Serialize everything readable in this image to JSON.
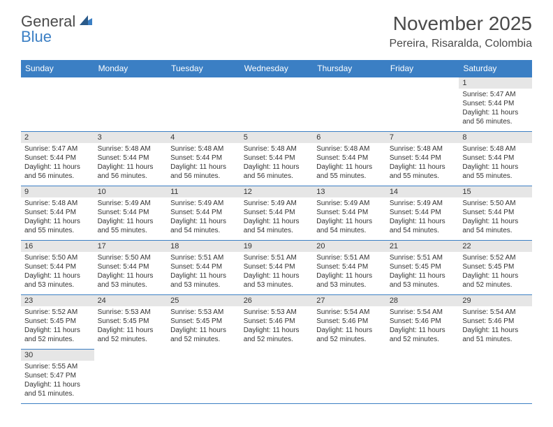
{
  "logo": {
    "text_gray": "General",
    "text_blue": "Blue"
  },
  "title": "November 2025",
  "location": "Pereira, Risaralda, Colombia",
  "colors": {
    "header_bg": "#3b7fc4",
    "header_text": "#ffffff",
    "daynum_bg": "#e6e6e6",
    "border": "#3b7fc4",
    "body_text": "#333333",
    "title_text": "#4a4a4a"
  },
  "weekdays": [
    "Sunday",
    "Monday",
    "Tuesday",
    "Wednesday",
    "Thursday",
    "Friday",
    "Saturday"
  ],
  "weeks": [
    [
      null,
      null,
      null,
      null,
      null,
      null,
      {
        "n": "1",
        "sr": "5:47 AM",
        "ss": "5:44 PM",
        "dh": "11",
        "dm": "56"
      }
    ],
    [
      {
        "n": "2",
        "sr": "5:47 AM",
        "ss": "5:44 PM",
        "dh": "11",
        "dm": "56"
      },
      {
        "n": "3",
        "sr": "5:48 AM",
        "ss": "5:44 PM",
        "dh": "11",
        "dm": "56"
      },
      {
        "n": "4",
        "sr": "5:48 AM",
        "ss": "5:44 PM",
        "dh": "11",
        "dm": "56"
      },
      {
        "n": "5",
        "sr": "5:48 AM",
        "ss": "5:44 PM",
        "dh": "11",
        "dm": "56"
      },
      {
        "n": "6",
        "sr": "5:48 AM",
        "ss": "5:44 PM",
        "dh": "11",
        "dm": "55"
      },
      {
        "n": "7",
        "sr": "5:48 AM",
        "ss": "5:44 PM",
        "dh": "11",
        "dm": "55"
      },
      {
        "n": "8",
        "sr": "5:48 AM",
        "ss": "5:44 PM",
        "dh": "11",
        "dm": "55"
      }
    ],
    [
      {
        "n": "9",
        "sr": "5:48 AM",
        "ss": "5:44 PM",
        "dh": "11",
        "dm": "55"
      },
      {
        "n": "10",
        "sr": "5:49 AM",
        "ss": "5:44 PM",
        "dh": "11",
        "dm": "55"
      },
      {
        "n": "11",
        "sr": "5:49 AM",
        "ss": "5:44 PM",
        "dh": "11",
        "dm": "54"
      },
      {
        "n": "12",
        "sr": "5:49 AM",
        "ss": "5:44 PM",
        "dh": "11",
        "dm": "54"
      },
      {
        "n": "13",
        "sr": "5:49 AM",
        "ss": "5:44 PM",
        "dh": "11",
        "dm": "54"
      },
      {
        "n": "14",
        "sr": "5:49 AM",
        "ss": "5:44 PM",
        "dh": "11",
        "dm": "54"
      },
      {
        "n": "15",
        "sr": "5:50 AM",
        "ss": "5:44 PM",
        "dh": "11",
        "dm": "54"
      }
    ],
    [
      {
        "n": "16",
        "sr": "5:50 AM",
        "ss": "5:44 PM",
        "dh": "11",
        "dm": "53"
      },
      {
        "n": "17",
        "sr": "5:50 AM",
        "ss": "5:44 PM",
        "dh": "11",
        "dm": "53"
      },
      {
        "n": "18",
        "sr": "5:51 AM",
        "ss": "5:44 PM",
        "dh": "11",
        "dm": "53"
      },
      {
        "n": "19",
        "sr": "5:51 AM",
        "ss": "5:44 PM",
        "dh": "11",
        "dm": "53"
      },
      {
        "n": "20",
        "sr": "5:51 AM",
        "ss": "5:44 PM",
        "dh": "11",
        "dm": "53"
      },
      {
        "n": "21",
        "sr": "5:51 AM",
        "ss": "5:45 PM",
        "dh": "11",
        "dm": "53"
      },
      {
        "n": "22",
        "sr": "5:52 AM",
        "ss": "5:45 PM",
        "dh": "11",
        "dm": "52"
      }
    ],
    [
      {
        "n": "23",
        "sr": "5:52 AM",
        "ss": "5:45 PM",
        "dh": "11",
        "dm": "52"
      },
      {
        "n": "24",
        "sr": "5:53 AM",
        "ss": "5:45 PM",
        "dh": "11",
        "dm": "52"
      },
      {
        "n": "25",
        "sr": "5:53 AM",
        "ss": "5:45 PM",
        "dh": "11",
        "dm": "52"
      },
      {
        "n": "26",
        "sr": "5:53 AM",
        "ss": "5:46 PM",
        "dh": "11",
        "dm": "52"
      },
      {
        "n": "27",
        "sr": "5:54 AM",
        "ss": "5:46 PM",
        "dh": "11",
        "dm": "52"
      },
      {
        "n": "28",
        "sr": "5:54 AM",
        "ss": "5:46 PM",
        "dh": "11",
        "dm": "52"
      },
      {
        "n": "29",
        "sr": "5:54 AM",
        "ss": "5:46 PM",
        "dh": "11",
        "dm": "51"
      }
    ],
    [
      {
        "n": "30",
        "sr": "5:55 AM",
        "ss": "5:47 PM",
        "dh": "11",
        "dm": "51"
      },
      null,
      null,
      null,
      null,
      null,
      null
    ]
  ],
  "labels": {
    "sunrise": "Sunrise:",
    "sunset": "Sunset:",
    "daylight": "Daylight:",
    "hours": "hours",
    "and": "and",
    "minutes": "minutes."
  }
}
